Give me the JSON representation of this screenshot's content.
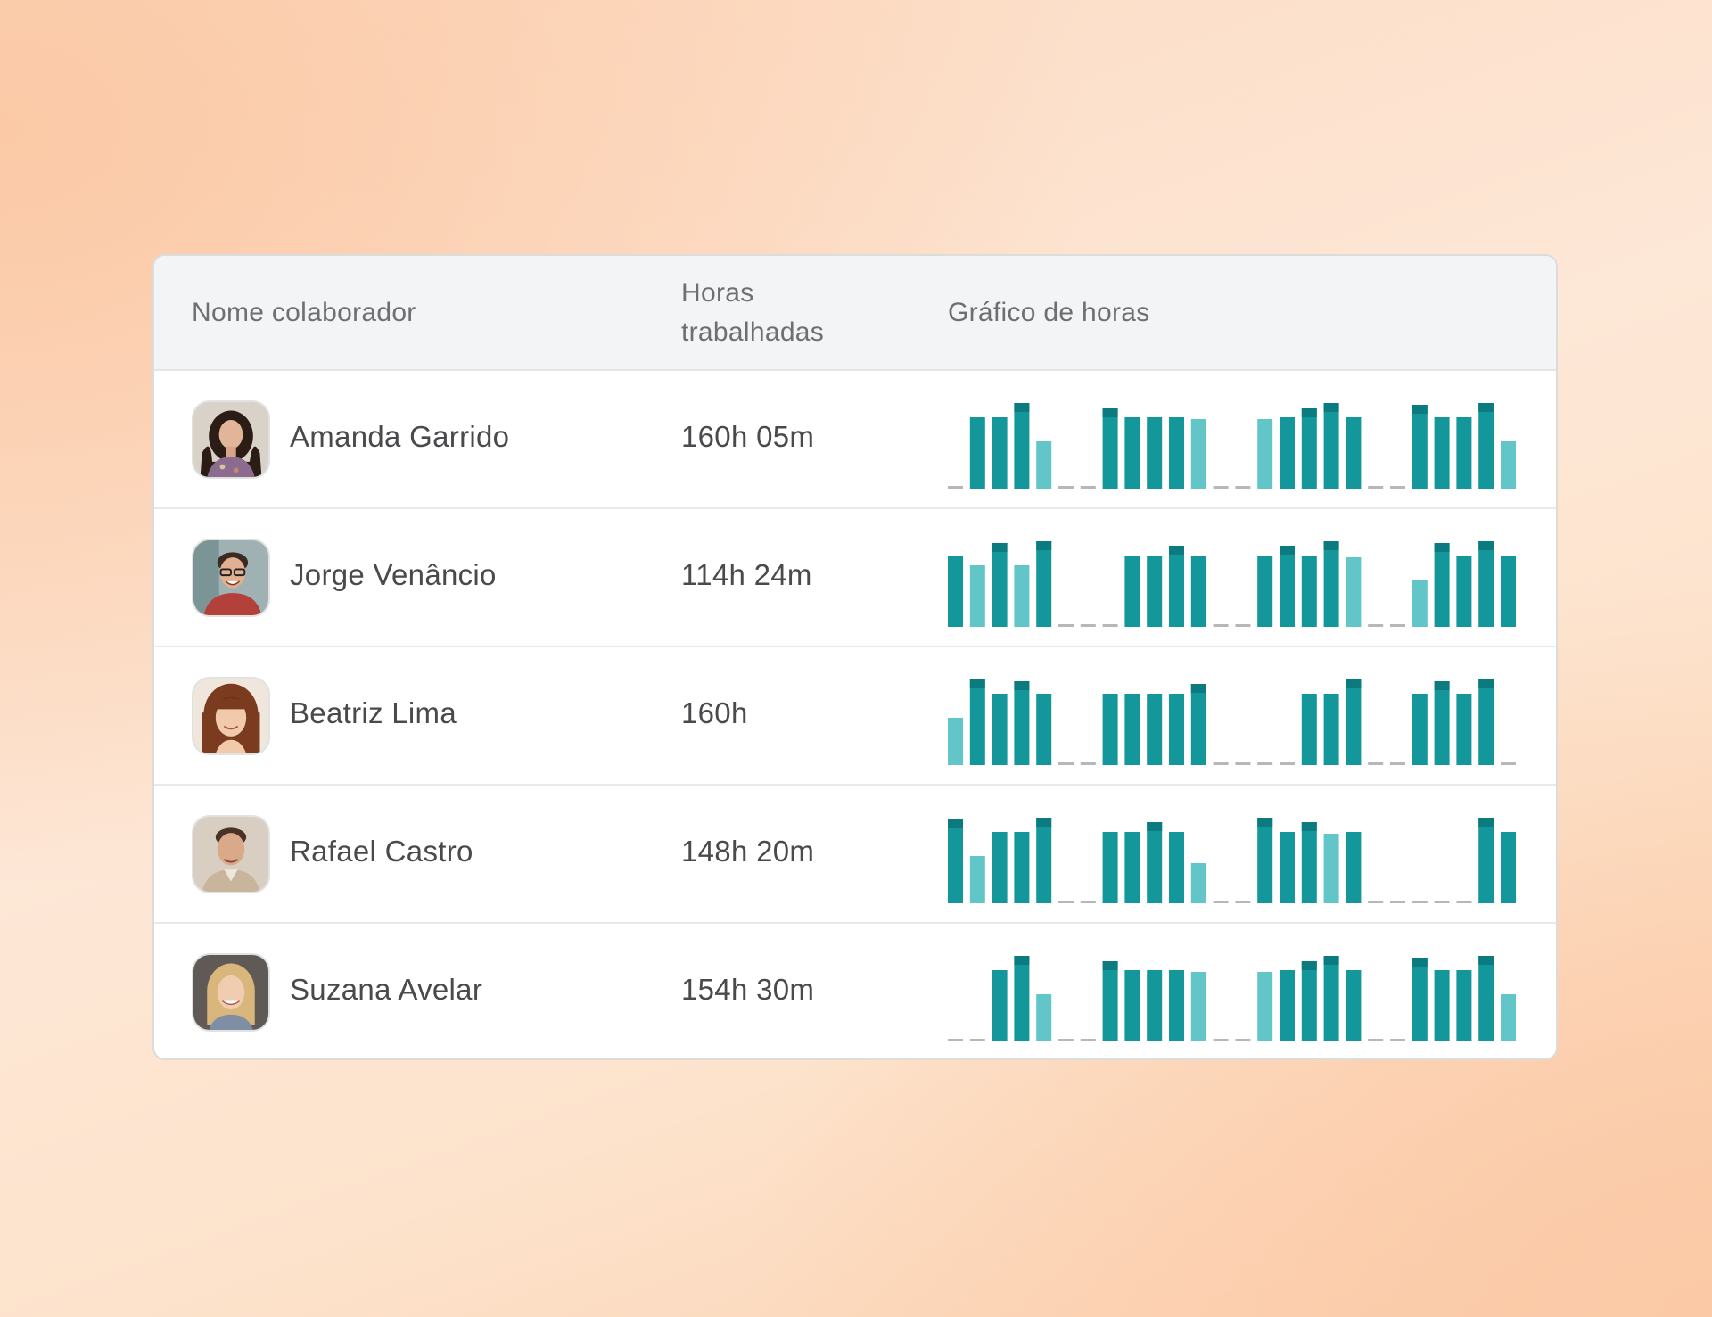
{
  "table": {
    "headers": {
      "name": "Nome colaborador",
      "hours": "Horas trabalhadas",
      "chart": "Gráfico de horas"
    },
    "colors": {
      "bar": "#14979a",
      "bar_light": "#62c6c9",
      "bar_cap": "#0b7b7f",
      "empty": "#b7b7b7"
    },
    "rows": [
      {
        "name": "Amanda Garrido",
        "hours": "160h 05m",
        "avatar": "avatar-amanda",
        "bars": [
          0,
          8,
          8,
          9.6,
          5.3,
          0,
          0,
          9,
          8,
          8,
          8,
          7.8,
          0,
          0,
          7.8,
          8,
          9,
          9.6,
          8,
          0,
          0,
          9.4,
          8,
          8,
          9.6,
          5.3
        ],
        "light": [
          4,
          11,
          14,
          25
        ]
      },
      {
        "name": "Jorge Venâncio",
        "hours": "114h 24m",
        "avatar": "avatar-jorge",
        "bars": [
          8,
          6.9,
          9.4,
          6.9,
          9.6,
          0,
          0,
          0,
          8,
          8,
          9.1,
          8,
          0,
          0,
          8,
          9.1,
          8,
          9.6,
          7.8,
          0,
          0,
          5.3,
          9.4,
          8,
          9.6,
          8
        ],
        "light": [
          1,
          3,
          18,
          21
        ]
      },
      {
        "name": "Beatriz Lima",
        "hours": "160h",
        "avatar": "avatar-beatriz",
        "bars": [
          5.3,
          9.6,
          8,
          9.4,
          8,
          0,
          0,
          8,
          8,
          8,
          8,
          9.1,
          0,
          0,
          0,
          0,
          8,
          8,
          9.6,
          0,
          0,
          8,
          9.4,
          8,
          9.6,
          0
        ],
        "light": [
          0
        ]
      },
      {
        "name": "Rafael Castro",
        "hours": "148h 20m",
        "avatar": "avatar-rafael",
        "bars": [
          9.4,
          5.3,
          8,
          8,
          9.6,
          0,
          0,
          8,
          8,
          9.1,
          8,
          4.5,
          0,
          0,
          9.6,
          8,
          9.1,
          7.8,
          8,
          0,
          0,
          0,
          0,
          0,
          9.6,
          8
        ],
        "light": [
          1,
          11,
          17
        ]
      },
      {
        "name": "Suzana Avelar",
        "hours": "154h 30m",
        "avatar": "avatar-suzana",
        "bars": [
          0,
          0,
          8,
          9.6,
          5.3,
          0,
          0,
          9,
          8,
          8,
          8,
          7.8,
          0,
          0,
          7.8,
          8,
          9,
          9.6,
          8,
          0,
          0,
          9.4,
          8,
          8,
          9.6,
          5.3
        ],
        "light": [
          4,
          11,
          14,
          25
        ]
      }
    ]
  }
}
